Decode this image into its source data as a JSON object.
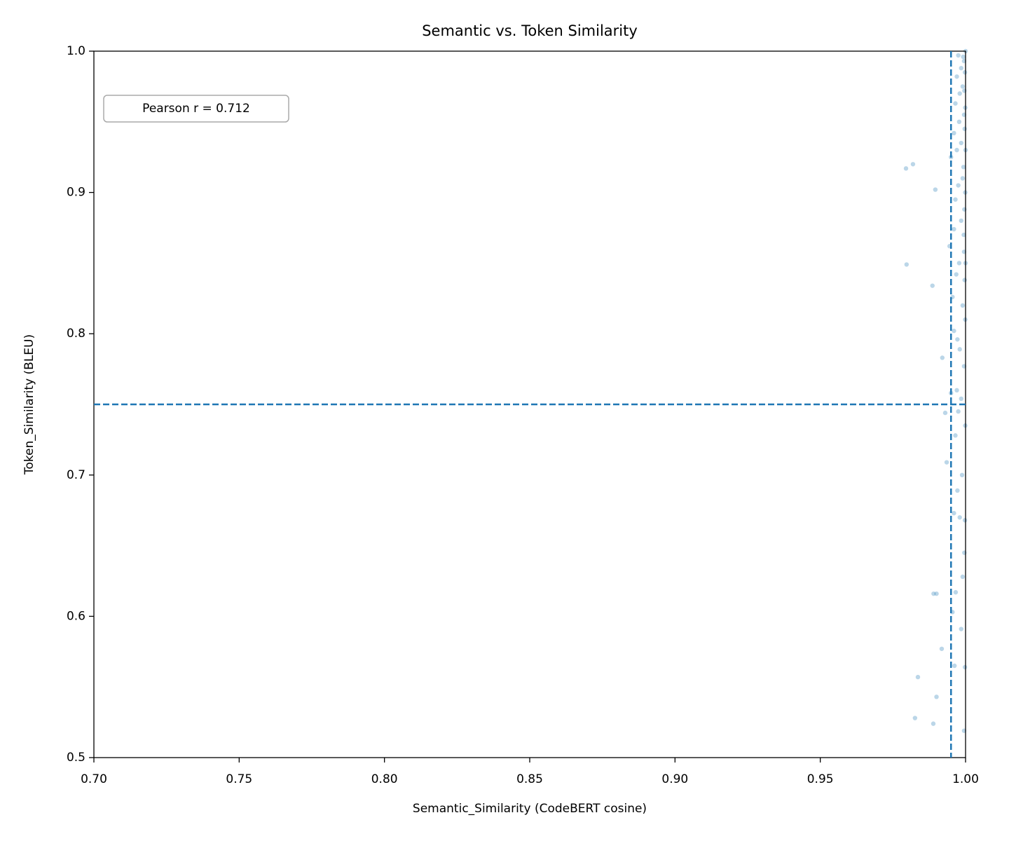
{
  "chart_data": {
    "type": "scatter",
    "title": "Semantic vs. Token Similarity",
    "xlabel": "Semantic_Similarity (CodeBERT cosine)",
    "ylabel": "Token_Similarity (BLEU)",
    "annotation": "Pearson r = 0.712",
    "color": "#1f77b4",
    "x": [
      0.9795,
      0.9819,
      0.9896,
      0.9797,
      0.9886,
      0.992,
      0.993,
      0.9935,
      0.989,
      0.99,
      0.9918,
      0.9836,
      0.99,
      0.9826,
      0.9889,
      0.9995,
      0.9966,
      0.9955,
      0.9962,
      0.9985,
      0.9998,
      0.999,
      0.998,
      0.996,
      0.9972,
      0.9988,
      0.9999,
      0.9965,
      0.9975,
      0.995,
      0.9985,
      0.9995,
      0.997,
      0.996,
      0.9972,
      0.998,
      0.9955,
      0.999,
      0.9968,
      0.9945,
      0.9978,
      0.9995,
      0.996,
      0.9985,
      0.9965,
      0.9975,
      0.999,
      0.995,
      0.997,
      0.9985,
      0.996,
      0.9978,
      0.9995,
      0.9965,
      0.998,
      0.999,
      0.997,
      0.9985,
      0.9995,
      0.9975,
      1,
      0.9992,
      0.9998,
      0.9996,
      0.9999,
      0.9997,
      1,
      0.9993,
      0.9999,
      0.9996,
      0.9994,
      1,
      0.9997,
      0.9999,
      0.9996,
      0.9998
    ],
    "values": [
      0.917,
      0.92,
      0.902,
      0.849,
      0.834,
      0.783,
      0.744,
      0.709,
      0.616,
      0.616,
      0.577,
      0.557,
      0.543,
      0.528,
      0.524,
      0.519,
      0.617,
      0.603,
      0.565,
      0.591,
      0.564,
      0.628,
      0.67,
      0.673,
      0.689,
      0.7,
      0.735,
      0.728,
      0.745,
      0.758,
      0.754,
      0.777,
      0.76,
      0.802,
      0.796,
      0.789,
      0.826,
      0.82,
      0.842,
      0.862,
      0.85,
      0.858,
      0.874,
      0.88,
      0.895,
      0.905,
      0.91,
      0.925,
      0.93,
      0.935,
      0.942,
      0.95,
      0.955,
      0.963,
      0.97,
      0.975,
      0.982,
      0.988,
      0.993,
      0.997,
      1,
      0.996,
      0.985,
      0.972,
      0.96,
      0.945,
      0.93,
      0.918,
      0.9,
      0.888,
      0.87,
      0.85,
      0.838,
      0.81,
      0.645,
      0.668
    ],
    "reference_lines": {
      "x": 0.995,
      "y": 0.75
    },
    "xlim": [
      0.7,
      1.0
    ],
    "ylim": [
      0.5,
      1.0
    ],
    "xticks": [
      {
        "value": 0.7,
        "label": "0.70"
      },
      {
        "value": 0.75,
        "label": "0.75"
      },
      {
        "value": 0.8,
        "label": "0.80"
      },
      {
        "value": 0.85,
        "label": "0.85"
      },
      {
        "value": 0.9,
        "label": "0.90"
      },
      {
        "value": 0.95,
        "label": "0.95"
      },
      {
        "value": 1.0,
        "label": "1.00"
      }
    ],
    "yticks": [
      0.5,
      0.6,
      0.7,
      0.8,
      0.9,
      {
        "value": 1.0,
        "label": "1.0"
      }
    ],
    "grid": false
  }
}
